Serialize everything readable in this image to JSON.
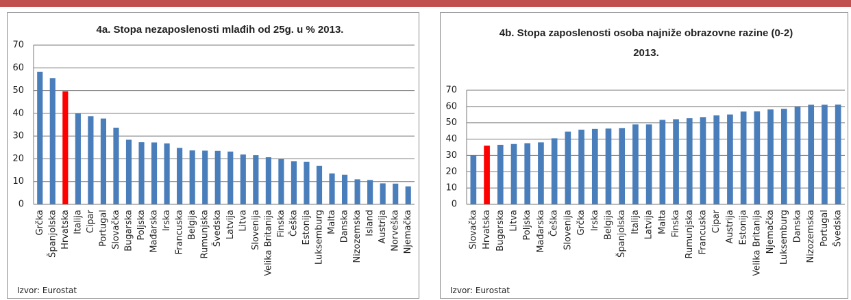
{
  "chart_data": [
    {
      "type": "bar",
      "title": "4a. Stopa nezaposlenosti mlađih od 25g. u % 2013.",
      "source": "Izvor: Eurostat",
      "categories": [
        "Grčka",
        "Španjolska",
        "Hrvatska",
        "Italija",
        "Cipar",
        "Portugal",
        "Slovačka",
        "Bugarska",
        "Poljska",
        "Mađarska",
        "Irska",
        "Francuska",
        "Belgija",
        "Rumunjska",
        "Švedska",
        "Latvija",
        "Litva",
        "Slovenija",
        "Velika Britanija",
        "Finska",
        "Češka",
        "Estonija",
        "Luksemburg",
        "Malta",
        "Danska",
        "Nizozemska",
        "Island",
        "Austrija",
        "Norveška",
        "Njemačka"
      ],
      "values": [
        58.3,
        55.5,
        49.7,
        40,
        38.7,
        37.7,
        33.7,
        28.4,
        27.3,
        27.2,
        26.8,
        24.8,
        23.7,
        23.6,
        23.5,
        23.2,
        21.9,
        21.6,
        20.7,
        19.9,
        18.9,
        18.7,
        16.9,
        13.6,
        13.0,
        11.0,
        10.7,
        9.2,
        9.1,
        7.9
      ],
      "color": "#4a7ebb",
      "highlight": "Hrvatska",
      "highlight_color": "#ff0000",
      "ylim": [
        0,
        70
      ],
      "yticks": [
        0,
        10,
        20,
        30,
        40,
        50,
        60,
        70
      ],
      "grid": true
    },
    {
      "type": "bar",
      "title": "4b. Stopa zaposlenosti osoba najniže obrazovne razine (0-2) 2013.",
      "source": "Izvor: Eurostat",
      "categories": [
        "Slovačka",
        "Hrvatska",
        "Bugarska",
        "Litva",
        "Poljska",
        "Mađarska",
        "Češka",
        "Slovenija",
        "Grčka",
        "Irska",
        "Belgija",
        "Španjolska",
        "Italija",
        "Latvija",
        "Malta",
        "Finska",
        "Rumunjska",
        "Francuska",
        "Cipar",
        "Austrija",
        "Estonija",
        "Velika Britanija",
        "Njemačka",
        "Luksemburg",
        "Danska",
        "Nizozemska",
        "Portugal",
        "Švedska"
      ],
      "values": [
        30,
        36,
        36.5,
        37,
        37.5,
        38,
        40.5,
        44.6,
        45.8,
        46.2,
        46.5,
        46.8,
        49,
        49,
        51.8,
        52.2,
        52.8,
        53.5,
        54.6,
        55.1,
        56.9,
        57,
        58.2,
        58.6,
        59.9,
        61.1,
        61.1,
        61.2
      ],
      "color": "#4a7ebb",
      "highlight": "Hrvatska",
      "highlight_color": "#ff0000",
      "ylim": [
        0,
        70
      ],
      "yticks": [
        0,
        10,
        20,
        30,
        40,
        50,
        60,
        70
      ],
      "grid": true
    }
  ]
}
